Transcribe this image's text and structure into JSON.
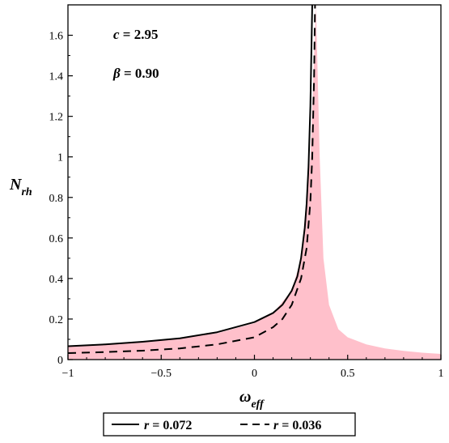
{
  "chart_data": {
    "type": "line",
    "xlabel": {
      "main": "ω",
      "sub": "eff"
    },
    "ylabel": {
      "main": "N",
      "sub": "rh"
    },
    "xlim": [
      -1,
      1
    ],
    "ylim": [
      0,
      1.75
    ],
    "x_ticks": [
      -1,
      -0.5,
      0,
      0.5,
      1
    ],
    "x_tick_labels": [
      "−1",
      "−0.5",
      "0",
      "0.5",
      "1"
    ],
    "y_ticks": [
      0,
      0.2,
      0.4,
      0.6,
      0.8,
      1,
      1.2,
      1.4,
      1.6
    ],
    "y_tick_labels": [
      "0",
      "0.2",
      "0.4",
      "0.6",
      "0.8",
      "1",
      "1.2",
      "1.4",
      "1.6"
    ],
    "annotations": [
      {
        "var": "c",
        "text": " = 2.95"
      },
      {
        "var": "β",
        "text": " = 0.90"
      }
    ],
    "shaded_region": {
      "color": "#ffc0cb",
      "x": [
        -1,
        -0.8,
        -0.6,
        -0.4,
        -0.2,
        0,
        0.1,
        0.2,
        0.25,
        0.3,
        0.33,
        0.35,
        0.37,
        0.4,
        0.45,
        0.5,
        0.6,
        0.7,
        0.8,
        0.9,
        1
      ],
      "y": [
        0.066,
        0.075,
        0.088,
        0.105,
        0.13,
        0.18,
        0.23,
        0.34,
        0.5,
        1.0,
        1.75,
        1.0,
        0.5,
        0.27,
        0.15,
        0.11,
        0.075,
        0.055,
        0.043,
        0.034,
        0.028
      ]
    },
    "series": [
      {
        "name": "r = 0.072",
        "label_var": "r",
        "label_text": " = 0.072",
        "style": "solid",
        "color": "#000000",
        "x": [
          -1,
          -0.8,
          -0.6,
          -0.4,
          -0.2,
          0,
          0.1,
          0.15,
          0.2,
          0.23,
          0.25,
          0.27,
          0.28,
          0.29,
          0.3,
          0.31
        ],
        "y": [
          0.066,
          0.075,
          0.088,
          0.105,
          0.135,
          0.185,
          0.23,
          0.27,
          0.34,
          0.41,
          0.5,
          0.65,
          0.77,
          0.95,
          1.25,
          1.75
        ]
      },
      {
        "name": "r = 0.036",
        "label_var": "r",
        "label_text": " = 0.036",
        "style": "dashed",
        "color": "#000000",
        "x": [
          -1,
          -0.8,
          -0.6,
          -0.4,
          -0.2,
          0,
          0.1,
          0.15,
          0.2,
          0.25,
          0.28,
          0.3,
          0.31,
          0.32,
          0.325
        ],
        "y": [
          0.032,
          0.037,
          0.044,
          0.055,
          0.075,
          0.11,
          0.16,
          0.2,
          0.27,
          0.4,
          0.55,
          0.78,
          1.0,
          1.4,
          1.75
        ]
      }
    ],
    "grid": false,
    "legend_position": "bottom"
  }
}
